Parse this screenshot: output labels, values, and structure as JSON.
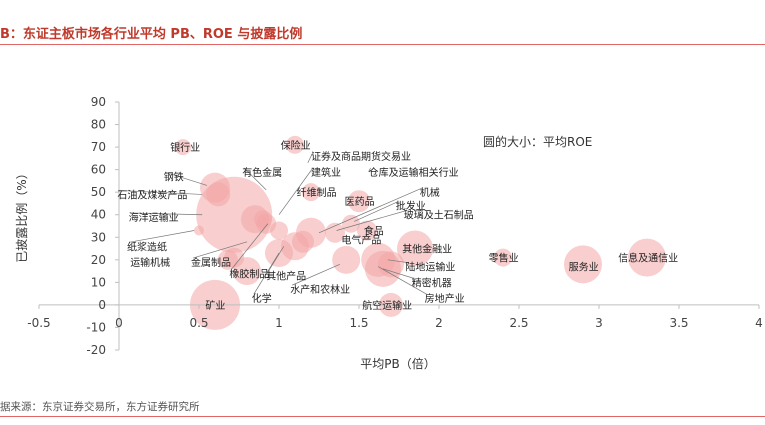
{
  "header": {
    "title": "B：东证主板市场各行业平均 PB、ROE 与披露比例"
  },
  "footer": {
    "source": "据来源：东京证券交易所，东方证券研究所"
  },
  "chart_data": {
    "type": "bubble",
    "xlabel": "平均PB（倍）",
    "ylabel": "已披露比例（%）",
    "xlim": [
      -0.5,
      4
    ],
    "ylim": [
      -20,
      90
    ],
    "xticks": [
      "-0.5",
      "0",
      "0.5",
      "1",
      "1.5",
      "2",
      "2.5",
      "3",
      "3.5",
      "4"
    ],
    "yticks": [
      "-20",
      "-10",
      "0",
      "10",
      "20",
      "30",
      "40",
      "50",
      "60",
      "70",
      "80",
      "90"
    ],
    "annotation": "圆的大小：平均ROE",
    "bubble_color": "#f2a6a6",
    "grid": false,
    "points": [
      {
        "name": "银行业",
        "x": 0.4,
        "y": 70,
        "r": 8
      },
      {
        "name": "钢铁",
        "x": 0.6,
        "y": 52,
        "r": 15
      },
      {
        "name": "石油及煤炭产品",
        "x": 0.62,
        "y": 49,
        "r": 12
      },
      {
        "name": "海洋运输业",
        "x": 0.72,
        "y": 40,
        "r": 38
      },
      {
        "name": "纸浆造纸",
        "x": 0.5,
        "y": 33,
        "r": 5
      },
      {
        "name": "运输机械",
        "x": 0.68,
        "y": 20,
        "r": 10
      },
      {
        "name": "金属制品",
        "x": 0.72,
        "y": 21,
        "r": 10
      },
      {
        "name": "矿业",
        "x": 0.6,
        "y": 0,
        "r": 25
      },
      {
        "name": "有色金属",
        "x": 0.85,
        "y": 38,
        "r": 14
      },
      {
        "name": "保险业",
        "x": 1.1,
        "y": 71,
        "r": 9
      },
      {
        "name": "证券及商品期货交易业",
        "x": 0.9,
        "y": 38,
        "r": 9
      },
      {
        "name": "建筑业",
        "x": 0.92,
        "y": 36,
        "r": 10
      },
      {
        "name": "仓库及运输相关行业",
        "x": 1.0,
        "y": 33,
        "r": 9
      },
      {
        "name": "纤维制品",
        "x": 1.2,
        "y": 50,
        "r": 9
      },
      {
        "name": "橡胶制品",
        "x": 0.8,
        "y": 15,
        "r": 14
      },
      {
        "name": "化学",
        "x": 1.0,
        "y": 23,
        "r": 14
      },
      {
        "name": "其他产品",
        "x": 1.1,
        "y": 26,
        "r": 14
      },
      {
        "name": "水产和农林业",
        "x": 1.15,
        "y": 28,
        "r": 11
      },
      {
        "name": "机械",
        "x": 1.2,
        "y": 32,
        "r": 15
      },
      {
        "name": "医药品",
        "x": 1.5,
        "y": 46,
        "r": 11
      },
      {
        "name": "批发业",
        "x": 1.45,
        "y": 36,
        "r": 9
      },
      {
        "name": "玻璃及土石制品",
        "x": 1.35,
        "y": 32,
        "r": 10
      },
      {
        "name": "食品",
        "x": 1.55,
        "y": 33,
        "r": 10
      },
      {
        "name": "电气产品",
        "x": 1.42,
        "y": 20,
        "r": 14
      },
      {
        "name": "其他金融业",
        "x": 1.85,
        "y": 25,
        "r": 18
      },
      {
        "name": "陆地运输业",
        "x": 1.7,
        "y": 18,
        "r": 13
      },
      {
        "name": "精密机器",
        "x": 1.65,
        "y": 16,
        "r": 18
      },
      {
        "name": "房地产业",
        "x": 1.62,
        "y": 20,
        "r": 17
      },
      {
        "name": "航空运输业",
        "x": 1.7,
        "y": 0,
        "r": 12
      },
      {
        "name": "零售业",
        "x": 2.4,
        "y": 21,
        "r": 9
      },
      {
        "name": "服务业",
        "x": 2.9,
        "y": 18,
        "r": 19
      },
      {
        "name": "信息及通信业",
        "x": 3.3,
        "y": 21,
        "r": 19
      }
    ],
    "labels": [
      {
        "text": "银行业",
        "x": 0.32,
        "y": 70,
        "anchor": "start"
      },
      {
        "text": "保险业",
        "x": 1.01,
        "y": 71,
        "anchor": "start"
      },
      {
        "text": "证券及商品期货交易业",
        "x": 1.2,
        "y": 66,
        "anchor": "start",
        "lx": 1.18,
        "ly": 63
      },
      {
        "text": "钢铁",
        "x": 0.28,
        "y": 57,
        "anchor": "start",
        "lx": 0.55,
        "ly": 53
      },
      {
        "text": "有色金属",
        "x": 0.77,
        "y": 59,
        "anchor": "start",
        "lx": 0.92,
        "ly": 51
      },
      {
        "text": "建筑业",
        "x": 1.2,
        "y": 59,
        "anchor": "start",
        "lx": 1.0,
        "ly": 40
      },
      {
        "text": "仓库及运输相关行业",
        "x": 1.56,
        "y": 59,
        "anchor": "start",
        "lx": 1.56,
        "ly": 59
      },
      {
        "text": "石油及煤炭产品",
        "x": -0.01,
        "y": 49,
        "anchor": "start",
        "lx": 0.52,
        "ly": 49
      },
      {
        "text": "纤维制品",
        "x": 1.11,
        "y": 50,
        "anchor": "start"
      },
      {
        "text": "机械",
        "x": 1.88,
        "y": 50,
        "anchor": "start",
        "lx": 1.25,
        "ly": 32
      },
      {
        "text": "医药品",
        "x": 1.41,
        "y": 46,
        "anchor": "start"
      },
      {
        "text": "批发业",
        "x": 1.73,
        "y": 44,
        "anchor": "start",
        "lx": 1.47,
        "ly": 37
      },
      {
        "text": "海洋运输业",
        "x": 0.06,
        "y": 39,
        "anchor": "start",
        "lx": 0.52,
        "ly": 40
      },
      {
        "text": "玻璃及土石制品",
        "x": 1.78,
        "y": 40,
        "anchor": "start",
        "lx": 1.36,
        "ly": 33
      },
      {
        "text": "食品",
        "x": 1.53,
        "y": 33,
        "anchor": "start"
      },
      {
        "text": "纸浆造纸",
        "x": 0.05,
        "y": 26,
        "anchor": "start",
        "lx": 0.47,
        "ly": 33
      },
      {
        "text": "电气产品",
        "x": 1.39,
        "y": 29,
        "anchor": "start"
      },
      {
        "text": "其他金融业",
        "x": 1.77,
        "y": 25,
        "anchor": "start"
      },
      {
        "text": "零售业",
        "x": 2.31,
        "y": 21,
        "anchor": "start"
      },
      {
        "text": "信息及通信业",
        "x": 3.12,
        "y": 21,
        "anchor": "start"
      },
      {
        "text": "运输机械",
        "x": 0.07,
        "y": 19,
        "anchor": "start"
      },
      {
        "text": "金属制品",
        "x": 0.45,
        "y": 19,
        "anchor": "start",
        "lx": 0.8,
        "ly": 28
      },
      {
        "text": "陆地运输业",
        "x": 1.79,
        "y": 17,
        "anchor": "start",
        "lx": 1.68,
        "ly": 20
      },
      {
        "text": "服务业",
        "x": 2.81,
        "y": 17,
        "anchor": "start"
      },
      {
        "text": "橡胶制品",
        "x": 0.69,
        "y": 14,
        "anchor": "start",
        "lx": 0.93,
        "ly": 36
      },
      {
        "text": "其他产品",
        "x": 0.92,
        "y": 13,
        "anchor": "start",
        "lx": 1.03,
        "ly": 26
      },
      {
        "text": "精密机器",
        "x": 1.83,
        "y": 10,
        "anchor": "start",
        "lx": 1.65,
        "ly": 16
      },
      {
        "text": "水产和农林业",
        "x": 1.07,
        "y": 7,
        "anchor": "start",
        "lx": 1.38,
        "ly": 18
      },
      {
        "text": "化学",
        "x": 0.83,
        "y": 3,
        "anchor": "start",
        "lx": 1.0,
        "ly": 23
      },
      {
        "text": "房地产业",
        "x": 1.91,
        "y": 3,
        "anchor": "start",
        "lx": 1.62,
        "ly": 17
      },
      {
        "text": "矿业",
        "x": 0.54,
        "y": 0,
        "anchor": "start"
      },
      {
        "text": "航空运输业",
        "x": 1.52,
        "y": 0,
        "anchor": "start"
      }
    ]
  }
}
